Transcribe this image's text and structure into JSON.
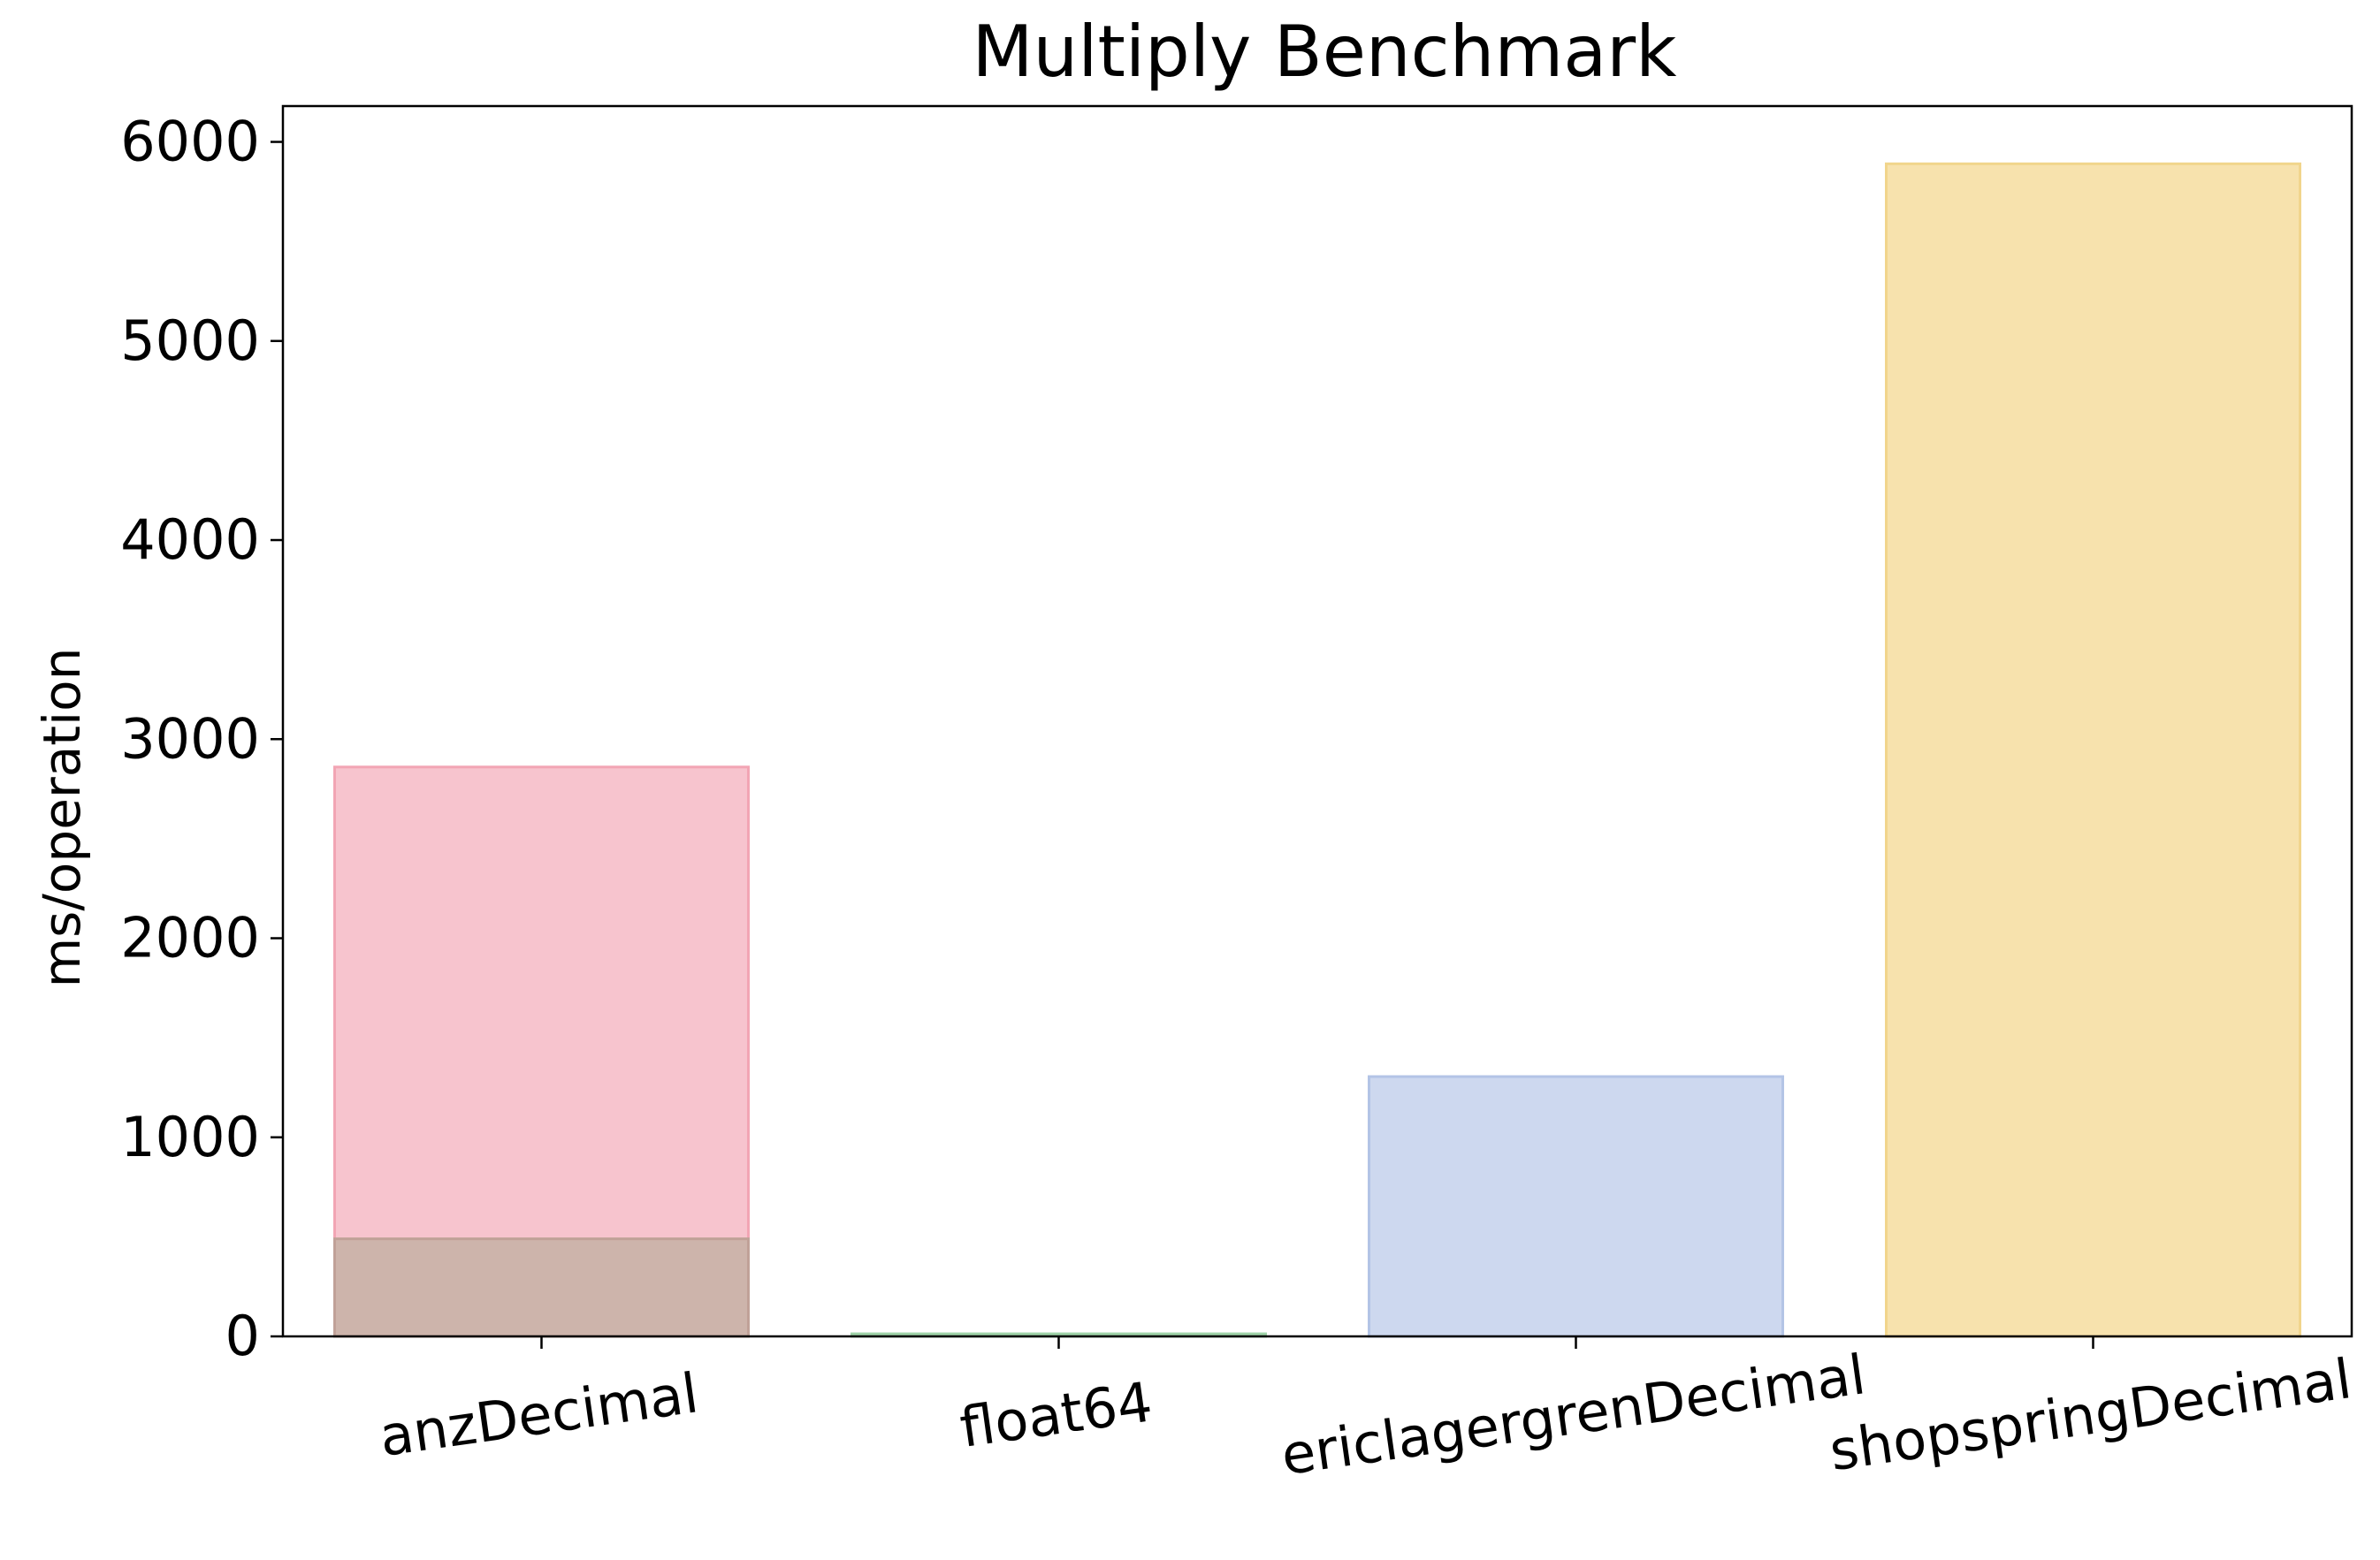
{
  "chart_data": {
    "type": "bar",
    "title": "Multiply Benchmark",
    "xlabel": "",
    "ylabel": "ms/operation",
    "ylim": [
      0,
      6180
    ],
    "yticks": [
      0,
      1000,
      2000,
      3000,
      4000,
      5000,
      6000
    ],
    "grid": false,
    "legend": "none",
    "categories": [
      "anzDecimal",
      "float64",
      "ericlagergrenDecimal",
      "shopspringDecimal"
    ],
    "series": [
      {
        "values": [
          2860,
          13,
          1305,
          5890
        ],
        "colors": [
          "#f7c4ce",
          "#c9e8cf",
          "#cdd8ef",
          "#f7e2ad"
        ],
        "edge_colors": [
          "#f2a5b4",
          "#9ed3a8",
          "#b3c4e6",
          "#f1d58c"
        ]
      },
      {
        "values": [
          490,
          0,
          0,
          0
        ],
        "colors": [
          "#cdb4ab",
          "#cdb4ab",
          "#cdb4ab",
          "#cdb4ab"
        ],
        "edge_colors": [
          "#c0a198",
          "#c0a198",
          "#c0a198",
          "#c0a198"
        ]
      }
    ]
  }
}
